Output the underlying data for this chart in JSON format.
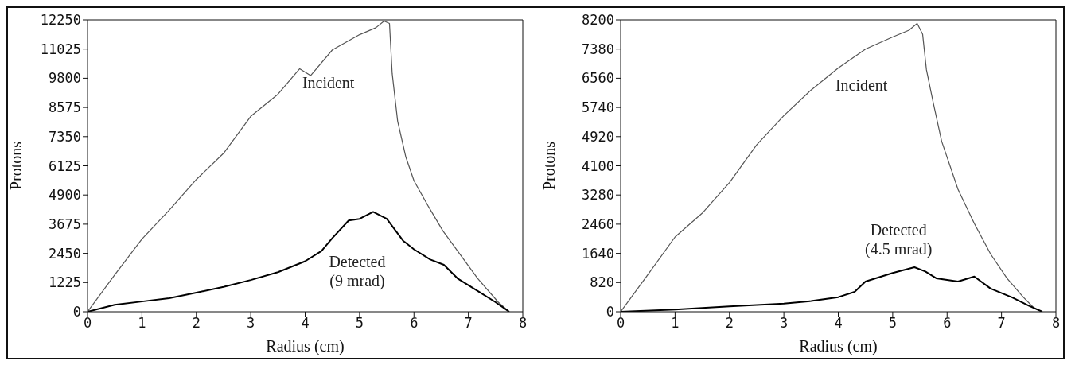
{
  "chart_data": [
    {
      "type": "line",
      "xlabel": "Radius (cm)",
      "ylabel": "Protons",
      "xlim": [
        0,
        8
      ],
      "xticks": [
        0,
        1,
        2,
        3,
        4,
        5,
        6,
        7,
        8
      ],
      "ylim": [
        0,
        12250
      ],
      "yticks": [
        0,
        1225,
        2450,
        3675,
        4900,
        6125,
        7350,
        8575,
        9800,
        11025,
        12250
      ],
      "series": [
        {
          "name": "Incident",
          "color": "#555555",
          "x": [
            0,
            0.5,
            1,
            1.5,
            2,
            2.5,
            3,
            3.5,
            3.9,
            4.1,
            4.5,
            5,
            5.3,
            5.45,
            5.55,
            5.6,
            5.7,
            5.85,
            6,
            6.27,
            6.53,
            6.85,
            7.17,
            7.55,
            7.75
          ],
          "values": [
            0,
            1550,
            3050,
            4260,
            5550,
            6650,
            8200,
            9130,
            10200,
            9910,
            10990,
            11630,
            11920,
            12200,
            12100,
            10000,
            8000,
            6500,
            5500,
            4400,
            3400,
            2400,
            1400,
            400,
            0
          ]
        },
        {
          "name": "Detected (9 mrad)",
          "color": "#000000",
          "x": [
            0,
            0.5,
            1,
            1.5,
            2,
            2.5,
            3,
            3.5,
            4,
            4.3,
            4.5,
            4.8,
            5,
            5.25,
            5.5,
            5.8,
            6,
            6.3,
            6.55,
            6.8,
            7.2,
            7.5,
            7.75
          ],
          "values": [
            0,
            290,
            430,
            570,
            800,
            1040,
            1330,
            1660,
            2120,
            2550,
            3090,
            3830,
            3900,
            4190,
            3900,
            2980,
            2620,
            2190,
            1970,
            1400,
            830,
            400,
            0
          ]
        }
      ]
    },
    {
      "type": "line",
      "xlabel": "Radius (cm)",
      "ylabel": "Protons",
      "xlim": [
        0,
        8
      ],
      "xticks": [
        0,
        1,
        2,
        3,
        4,
        5,
        6,
        7,
        8
      ],
      "ylim": [
        0,
        8200
      ],
      "yticks": [
        0,
        820,
        1640,
        2460,
        3280,
        4100,
        4920,
        5740,
        6560,
        7380,
        8200
      ],
      "series": [
        {
          "name": "Incident",
          "color": "#555555",
          "x": [
            0,
            0.5,
            1,
            1.5,
            2,
            2.5,
            3,
            3.5,
            4,
            4.5,
            5,
            5.3,
            5.45,
            5.55,
            5.62,
            5.75,
            5.9,
            6.2,
            6.5,
            6.8,
            7.1,
            7.4,
            7.6,
            7.75
          ],
          "values": [
            0,
            1040,
            2100,
            2770,
            3630,
            4690,
            5510,
            6230,
            6850,
            7380,
            7720,
            7910,
            8100,
            7800,
            6800,
            5840,
            4790,
            3440,
            2480,
            1620,
            940,
            410,
            100,
            0
          ]
        },
        {
          "name": "Detected (4.5 mrad)",
          "color": "#000000",
          "x": [
            0,
            1,
            2,
            3,
            3.5,
            4,
            4.3,
            4.5,
            5,
            5.4,
            5.6,
            5.8,
            6.2,
            6.5,
            6.8,
            7.2,
            7.5,
            7.75
          ],
          "values": [
            0,
            60,
            150,
            230,
            300,
            410,
            560,
            850,
            1090,
            1250,
            1130,
            940,
            850,
            990,
            650,
            400,
            170,
            0
          ]
        }
      ]
    }
  ]
}
